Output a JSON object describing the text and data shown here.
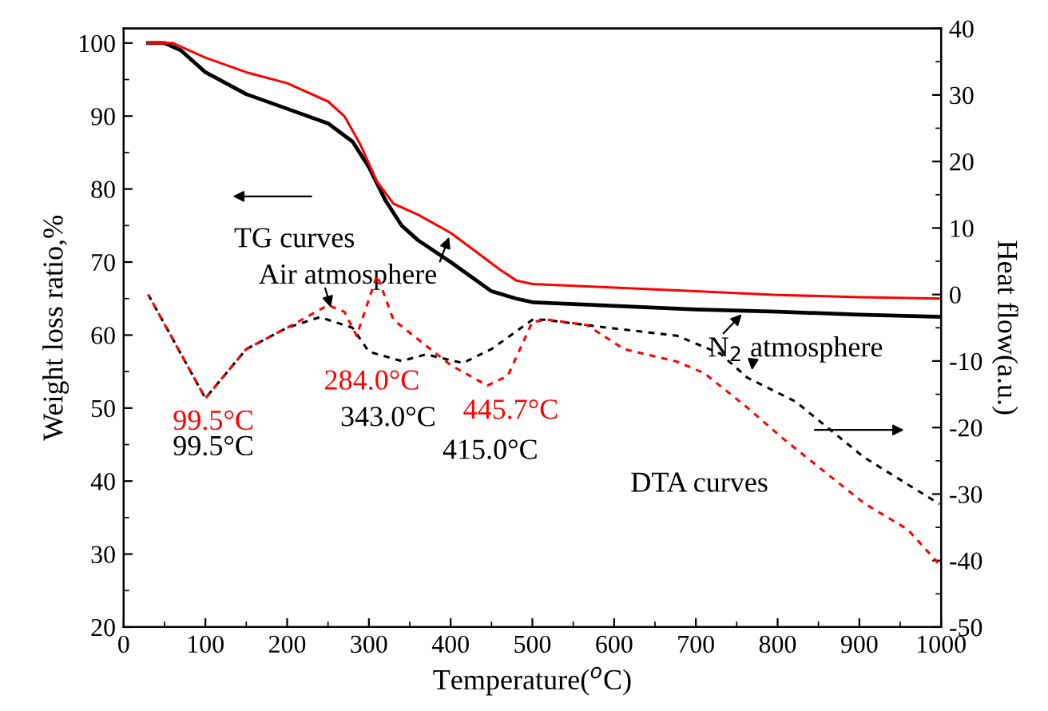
{
  "chart_data": {
    "type": "line",
    "xlabel": "Temperature($^{o}$C)",
    "ylabel": "Weight loss ratio,%",
    "y2label": "Heat flow(a.u.)",
    "xlim": [
      0,
      1000
    ],
    "xticks": [
      0,
      100,
      200,
      300,
      400,
      500,
      600,
      700,
      800,
      900,
      1000
    ],
    "ylim": [
      20,
      102
    ],
    "yticks": [
      20,
      30,
      40,
      50,
      60,
      70,
      80,
      90,
      100
    ],
    "y2lim": [
      -50,
      40
    ],
    "y2ticks": [
      -50,
      -40,
      -30,
      -20,
      -10,
      0,
      10,
      20,
      30,
      40
    ],
    "grid": false,
    "legend": false,
    "series": [
      {
        "color": "#000000",
        "line_style": "solid",
        "x": [
          30,
          50,
          70,
          100,
          150,
          200,
          250,
          280,
          300,
          320,
          340,
          360,
          400,
          450,
          480,
          500,
          600,
          700,
          800,
          900,
          1000
        ],
        "values": [
          100,
          100,
          99,
          96,
          93,
          91,
          89,
          86.5,
          83,
          78.5,
          75,
          73,
          70,
          66,
          65,
          64.5,
          64,
          63.5,
          63.2,
          62.8,
          62.5
        ]
      },
      {
        "color": "#ff0000",
        "line_style": "solid",
        "x": [
          30,
          60,
          100,
          150,
          200,
          250,
          270,
          290,
          310,
          330,
          360,
          400,
          430,
          460,
          480,
          500,
          600,
          700,
          800,
          900,
          1000
        ],
        "values": [
          100,
          100,
          98,
          96,
          94.5,
          92,
          90,
          86,
          81,
          78,
          76.5,
          74,
          71.5,
          69,
          67.5,
          67,
          66.5,
          66,
          65.5,
          65.2,
          65
        ]
      },
      {
        "color": "#000000",
        "line_style": "dashed",
        "axis": "y2",
        "x": [
          30,
          100,
          150,
          200,
          240,
          280,
          300,
          340,
          370,
          415,
          450,
          500,
          515,
          593,
          677,
          730,
          763,
          822,
          906,
          998
        ],
        "values": [
          0,
          -15.6,
          -8.2,
          -5,
          -3.4,
          -5,
          -8.6,
          -10,
          -9,
          -10.3,
          -8.2,
          -3.8,
          -3.8,
          -5,
          -6.2,
          -8.9,
          -12.5,
          -16.1,
          -24.5,
          -31.5
        ]
      },
      {
        "color": "#ff0000",
        "line_style": "dashed",
        "axis": "y2",
        "x": [
          30,
          100,
          150,
          200,
          250,
          270,
          285,
          310,
          330,
          400,
          445,
          470,
          500,
          520,
          567,
          612,
          677,
          710,
          763,
          808,
          906,
          959,
          998
        ],
        "values": [
          0,
          -15.6,
          -8.2,
          -5,
          -1.6,
          -2.6,
          -6.2,
          2.9,
          -3.8,
          -10.6,
          -13.7,
          -12.2,
          -4.1,
          -3.8,
          -4.6,
          -8.2,
          -10.1,
          -11.8,
          -17,
          -21.8,
          -31.4,
          -35.3,
          -40.6
        ]
      }
    ],
    "annotations": [
      "TG curves",
      {
        "text": "Air atmosphere",
        "x": 400,
        "y": 74
      },
      {
        "text": "N$_{2}$ atmosphere",
        "x": 760,
        "y": 63.3
      },
      "DTA curves",
      "99.5°C",
      "99.5°C",
      "284.0°C",
      "343.0°C",
      "445.7°C",
      "415.0°C"
    ]
  }
}
